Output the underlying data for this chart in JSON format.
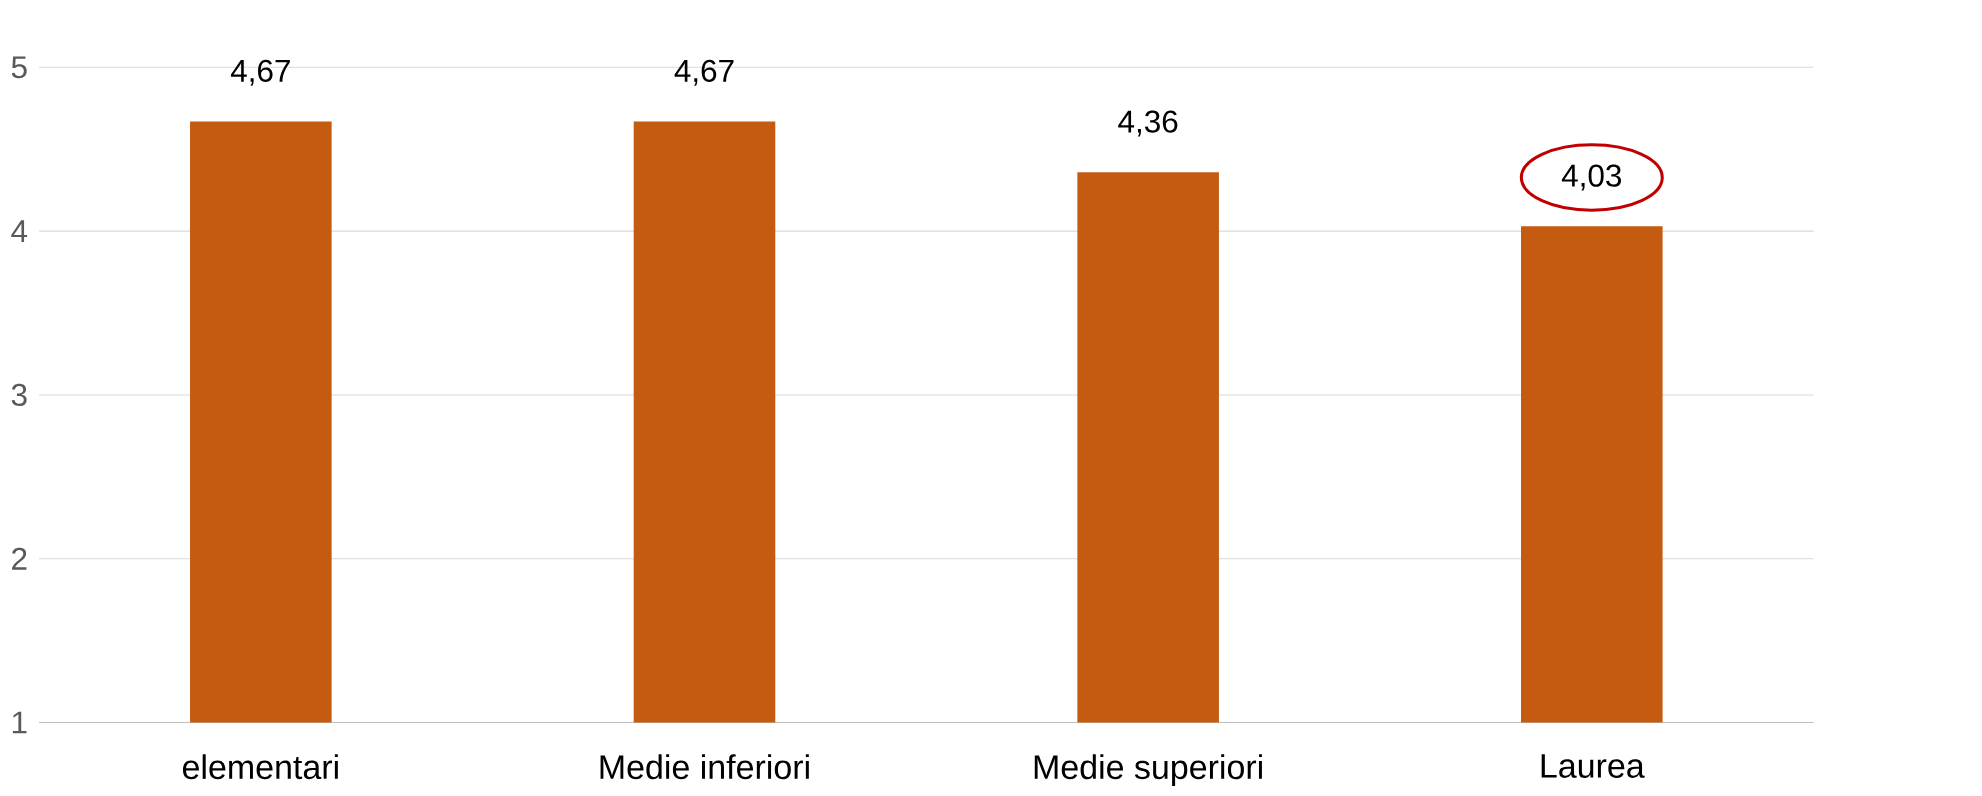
{
  "chart_data": {
    "type": "bar",
    "categories": [
      "elementari",
      "Medie inferiori",
      "Medie superiori",
      "Laurea"
    ],
    "values": [
      4.67,
      4.67,
      4.36,
      4.03
    ],
    "value_labels": [
      "4,67",
      "4,67",
      "4,36",
      "4,03"
    ],
    "color": "#c55a11",
    "ylim": [
      1,
      5
    ],
    "yticks": [
      1,
      2,
      3,
      4,
      5
    ],
    "grid": "y"
  }
}
